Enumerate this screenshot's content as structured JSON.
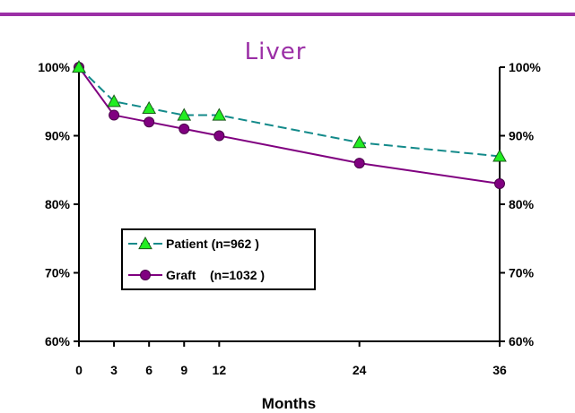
{
  "chart_data": {
    "type": "line",
    "title": "Liver",
    "xlabel": "Months",
    "ylabel": "",
    "x": [
      0,
      3,
      6,
      9,
      12,
      24,
      36
    ],
    "xlim": [
      0,
      36
    ],
    "ylim": [
      60,
      100
    ],
    "x_ticks": [
      "0",
      "3",
      "6",
      "9",
      "12",
      "24",
      "36"
    ],
    "y_ticks_left": [
      "100%",
      "90%",
      "80%",
      "70%",
      "60%"
    ],
    "y_ticks_right": [
      "100%",
      "90%",
      "80%",
      "70%",
      "60%"
    ],
    "y_tick_values": [
      100,
      90,
      80,
      70,
      60
    ],
    "grid": false,
    "legend_position": "lower-left",
    "series": [
      {
        "name": "Patient (n=962 )",
        "values": [
          100,
          95,
          94,
          93,
          93,
          89,
          87
        ],
        "color": "#138a8a",
        "marker": "triangle",
        "marker_color": "#22ee22",
        "line_style": "dashed"
      },
      {
        "name": "Graft    (n=1032 )",
        "values": [
          100,
          93,
          92,
          91,
          90,
          86,
          83
        ],
        "color": "#800080",
        "marker": "circle",
        "marker_color": "#800080",
        "line_style": "solid"
      }
    ]
  },
  "colors": {
    "title": "#9b2fa6",
    "top_rule": "#9b2fa6"
  }
}
